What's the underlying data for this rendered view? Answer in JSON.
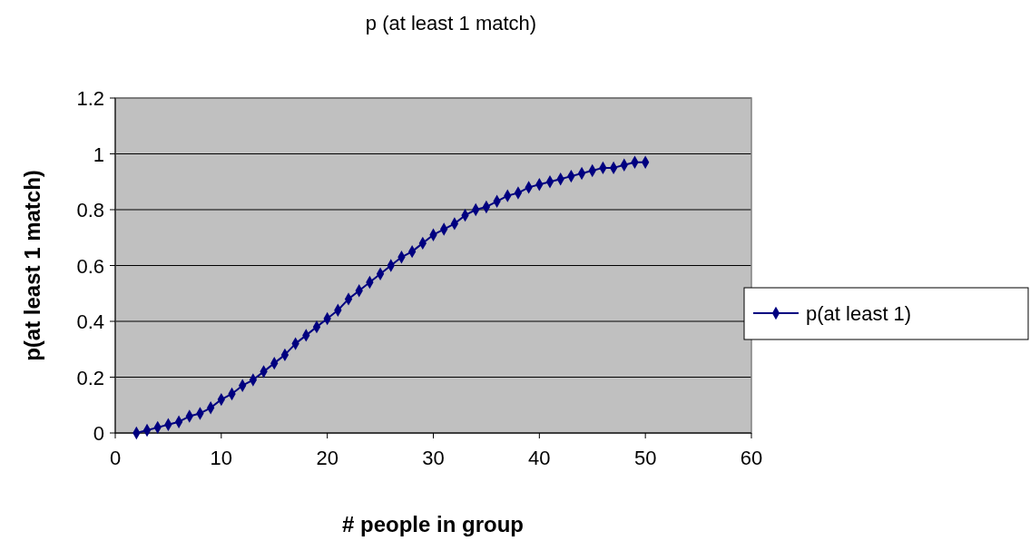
{
  "chart_data": {
    "type": "line",
    "title": "p (at least 1 match)",
    "xlabel": "# people in group",
    "ylabel": "p(at least 1 match)",
    "x": [
      2,
      3,
      4,
      5,
      6,
      7,
      8,
      9,
      10,
      11,
      12,
      13,
      14,
      15,
      16,
      17,
      18,
      19,
      20,
      21,
      22,
      23,
      24,
      25,
      26,
      27,
      28,
      29,
      30,
      31,
      32,
      33,
      34,
      35,
      36,
      37,
      38,
      39,
      40,
      41,
      42,
      43,
      44,
      45,
      46,
      47,
      48,
      49,
      50
    ],
    "series": [
      {
        "name": "p(at least 1)",
        "color": "#000080",
        "values": [
          0.0,
          0.01,
          0.02,
          0.03,
          0.04,
          0.06,
          0.07,
          0.09,
          0.12,
          0.14,
          0.17,
          0.19,
          0.22,
          0.25,
          0.28,
          0.32,
          0.35,
          0.38,
          0.41,
          0.44,
          0.48,
          0.51,
          0.54,
          0.57,
          0.6,
          0.63,
          0.65,
          0.68,
          0.71,
          0.73,
          0.75,
          0.78,
          0.8,
          0.81,
          0.83,
          0.85,
          0.86,
          0.88,
          0.89,
          0.9,
          0.91,
          0.92,
          0.93,
          0.94,
          0.95,
          0.95,
          0.96,
          0.97,
          0.97
        ]
      }
    ],
    "xlim": [
      0,
      60
    ],
    "xticks": [
      0,
      10,
      20,
      30,
      40,
      50,
      60
    ],
    "ylim": [
      0,
      1.2
    ],
    "yticks": [
      0,
      0.2,
      0.4,
      0.6,
      0.8,
      1,
      1.2
    ],
    "grid": "y",
    "legend": "right",
    "marker": "diamond",
    "line_style": "solid"
  }
}
